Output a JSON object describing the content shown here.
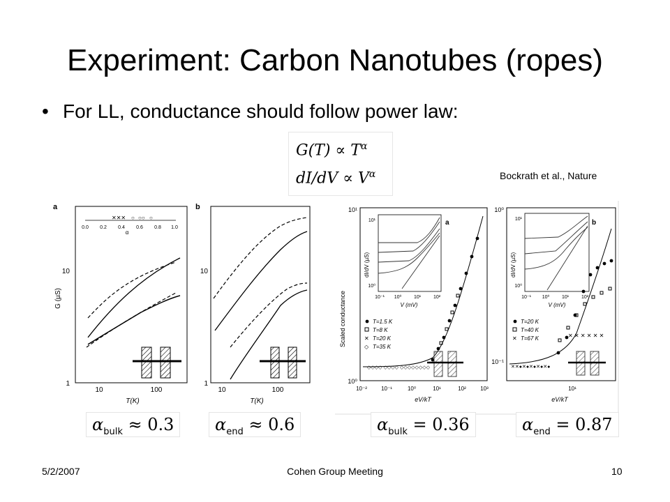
{
  "slide": {
    "title": "Experiment: Carbon Nanotubes (ropes)",
    "bullet": "For LL, conductance should follow power law:",
    "equations": {
      "line1": "G(T) ∝ T",
      "line1_sup": "α",
      "line2": "dI/dV ∝ V",
      "line2_sup": "α"
    },
    "citation": "Bockrath et al., Nature"
  },
  "figures": {
    "left_a": {
      "panel_label": "a",
      "ylabel": "G (µS)",
      "xlabel": "T(K)",
      "y_ticks": [
        "10",
        "1"
      ],
      "x_ticks": [
        "10",
        "100"
      ],
      "inset_ticks": [
        "0.0",
        "0.2",
        "0.4",
        "0.6",
        "0.8",
        "1.0"
      ],
      "inset_label": "α"
    },
    "left_b": {
      "panel_label": "b",
      "xlabel": "T(K)",
      "y_ticks": [
        "10",
        "1"
      ],
      "x_ticks": [
        "10",
        "100"
      ]
    },
    "right_a": {
      "panel_label": "a",
      "ylabel": "Scaled conductance",
      "xlabel": "eV/kT",
      "y_ticks": [
        "10¹",
        "10⁰"
      ],
      "x_ticks": [
        "10⁻²",
        "10⁻¹",
        "10⁰",
        "10¹",
        "10²",
        "10³"
      ],
      "inset_ylabel": "dI/dV (µS)",
      "inset_xlabel": "V (mV)",
      "inset_y_ticks": [
        "10¹",
        "10⁰"
      ],
      "inset_x_ticks": [
        "10⁻¹",
        "10⁰",
        "10¹",
        "10²"
      ],
      "legend": [
        "T=1.5 K",
        "T=8 K",
        "T=20 K",
        "T=35 K"
      ]
    },
    "right_b": {
      "panel_label": "b",
      "xlabel": "eV/kT",
      "y_ticks": [
        "10⁰",
        "10⁻¹"
      ],
      "x_ticks": [
        "10¹"
      ],
      "inset_ylabel": "dI/dV (µS)",
      "inset_xlabel": "V (mV)",
      "inset_y_ticks": [
        "10¹",
        "10⁰"
      ],
      "inset_x_ticks": [
        "10⁻¹",
        "10⁰",
        "10¹",
        "10²"
      ],
      "legend": [
        "T=20 K",
        "T=40 K",
        "T=67 K"
      ]
    }
  },
  "exponents": {
    "bulk_1": {
      "symbol": "α",
      "sub": "bulk",
      "rel": "≈",
      "value": "0.3"
    },
    "end_1": {
      "symbol": "α",
      "sub": "end",
      "rel": "≈",
      "value": "0.6"
    },
    "bulk_2": {
      "symbol": "α",
      "sub": "bulk",
      "rel": "=",
      "value": "0.36"
    },
    "end_2": {
      "symbol": "α",
      "sub": "end",
      "rel": "=",
      "value": "0.87"
    }
  },
  "footer": {
    "date": "5/2/2007",
    "center": "Cohen Group Meeting",
    "page": "10"
  }
}
